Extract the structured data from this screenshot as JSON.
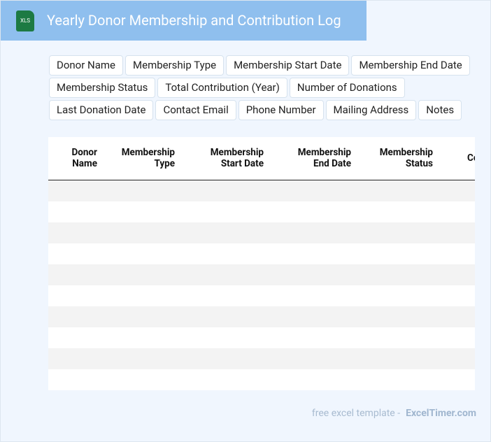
{
  "header": {
    "icon": "XLS",
    "title": "Yearly Donor Membership and Contribution Log"
  },
  "tags": [
    [
      "Donor Name",
      "Membership Type",
      "Membership Start Date",
      "Membership End Date"
    ],
    [
      "Membership Status",
      "Total Contribution (Year)",
      "Number of Donations"
    ],
    [
      "Last Donation Date",
      "Contact Email",
      "Phone Number",
      "Mailing Address",
      "Notes"
    ]
  ],
  "table": {
    "columns": [
      "Donor\nName",
      "Membership\nType",
      "Membership\nStart Date",
      "Membership\nEnd Date",
      "Membership\nStatus",
      "Co"
    ]
  },
  "footer": {
    "text": "free excel template -",
    "link": "ExcelTimer.com"
  }
}
